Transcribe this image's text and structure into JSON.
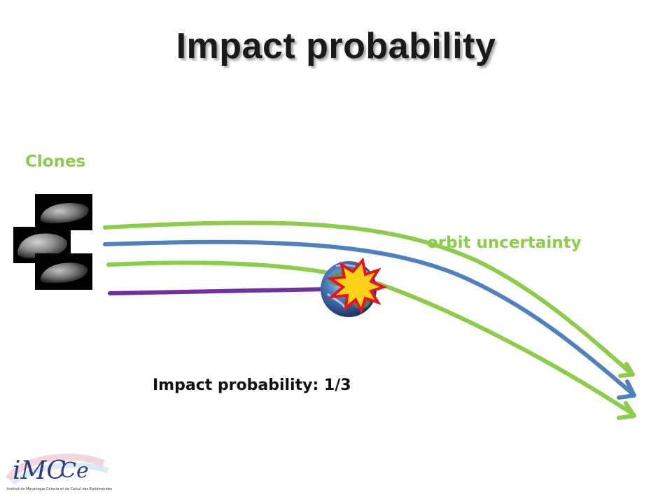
{
  "title": "Impact probability",
  "labels": {
    "clones": "Clones",
    "uncertainty": "orbit uncertainty",
    "probability": "Impact probability: 1/3"
  },
  "logo": {
    "text": "iMCCE",
    "subtitle": "Institut de Mécanique Céleste et de Calcul des Éphémérides"
  },
  "colors": {
    "green": "#8ccc4a",
    "blue": "#4f81bd",
    "purple": "#7030a0",
    "explosion_red": "#e8141c",
    "explosion_yellow": "#ffd11a"
  },
  "icons": [
    "asteroid-icon",
    "earth-icon",
    "explosion-icon"
  ]
}
